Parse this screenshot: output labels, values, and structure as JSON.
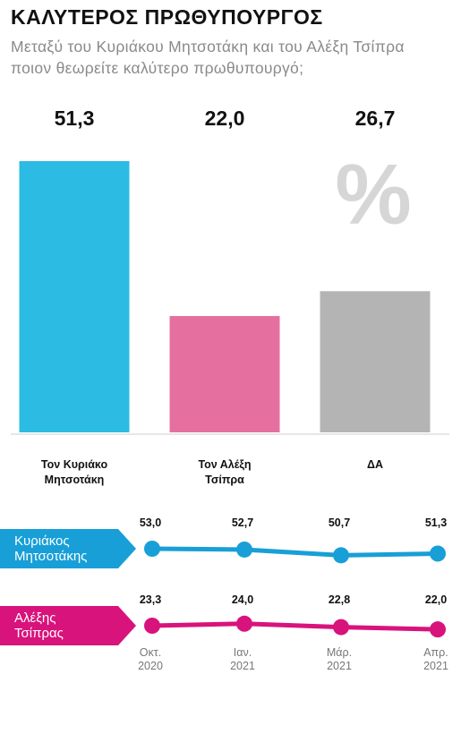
{
  "title": "ΚΑΛΥΤΕΡΟΣ ΠΡΩΘΥΠΟΥΡΓΟΣ",
  "subtitle": "Μεταξύ του Κυριάκου Μητσοτάκη και του Αλέξη Τσίπρα ποιον θεωρείτε καλύτερο πρωθυπουργό;",
  "percent_symbol": "%",
  "chart_data": [
    {
      "type": "bar",
      "categories": [
        [
          "Τον Κυριάκο",
          "Μητσοτάκη"
        ],
        [
          "Τον Αλέξη",
          "Τσίπρα"
        ],
        [
          "ΔΑ"
        ]
      ],
      "values": [
        51.3,
        22.0,
        26.7
      ],
      "value_labels": [
        "51,3",
        "22,0",
        "26,7"
      ],
      "colors": [
        "#2cbbe3",
        "#e5709f",
        "#b4b4b4"
      ],
      "ylim": [
        0,
        51.3
      ]
    },
    {
      "type": "line",
      "x": [
        [
          "Οκτ.",
          "2020"
        ],
        [
          "Ιαν.",
          "2021"
        ],
        [
          "Μάρ.",
          "2021"
        ],
        [
          "Απρ.",
          "2021"
        ]
      ],
      "series": [
        {
          "name": [
            "Κυριάκος",
            "Μητσοτάκης"
          ],
          "values": [
            53.0,
            52.7,
            50.7,
            51.3
          ],
          "labels": [
            "53,0",
            "52,7",
            "50,7",
            "51,3"
          ],
          "color": "#189fd7"
        },
        {
          "name": [
            "Αλέξης",
            "Τσίπρας"
          ],
          "values": [
            23.3,
            24.0,
            22.8,
            22.0
          ],
          "labels": [
            "23,3",
            "24,0",
            "22,8",
            "22,0"
          ],
          "color": "#d8137c"
        }
      ]
    }
  ]
}
